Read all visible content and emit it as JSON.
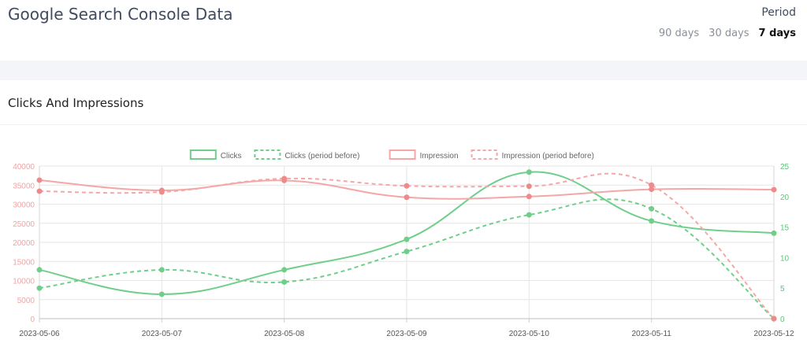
{
  "header": {
    "title": "Google Search Console Data",
    "period_label": "Period",
    "period_options": [
      {
        "label": "90 days",
        "active": false
      },
      {
        "label": "30 days",
        "active": false
      },
      {
        "label": "7 days",
        "active": true
      }
    ]
  },
  "section": {
    "title": "Clicks And Impressions"
  },
  "colors": {
    "clicks": "#6fcf8a",
    "impressions": "#f4a7a7",
    "impressions_point": "#ee8a8a",
    "left_axis_text": "#f1a3a3",
    "right_axis_text": "#5cc47a",
    "x_axis_text": "#555555",
    "grid": "#e6e6e6"
  },
  "chart_data": {
    "type": "line",
    "categories": [
      "2023-05-06",
      "2023-05-07",
      "2023-05-08",
      "2023-05-09",
      "2023-05-10",
      "2023-05-11",
      "2023-05-12"
    ],
    "legend_position": "top",
    "grid": true,
    "y_left": {
      "ylim": [
        0,
        40000
      ],
      "ticks": [
        "0",
        "5000",
        "10000",
        "15000",
        "20000",
        "25000",
        "30000",
        "35000",
        "40000"
      ]
    },
    "y_right": {
      "ylim": [
        0,
        25
      ],
      "ticks": [
        "0",
        "5",
        "10",
        "15",
        "20",
        "25"
      ]
    },
    "series": [
      {
        "name": "Clicks",
        "axis": "right",
        "dashed": false,
        "values": [
          8,
          4,
          8,
          13,
          24,
          16,
          14
        ]
      },
      {
        "name": "Clicks (period before)",
        "axis": "right",
        "dashed": true,
        "values": [
          5,
          8,
          6,
          11,
          17,
          18,
          0
        ]
      },
      {
        "name": "Impression",
        "axis": "left",
        "dashed": false,
        "values": [
          36300,
          33600,
          36200,
          31800,
          32000,
          33900,
          33800
        ]
      },
      {
        "name": "Impression (period before)",
        "axis": "left",
        "dashed": true,
        "values": [
          33400,
          33200,
          36700,
          34800,
          34700,
          35000,
          0
        ]
      }
    ]
  }
}
